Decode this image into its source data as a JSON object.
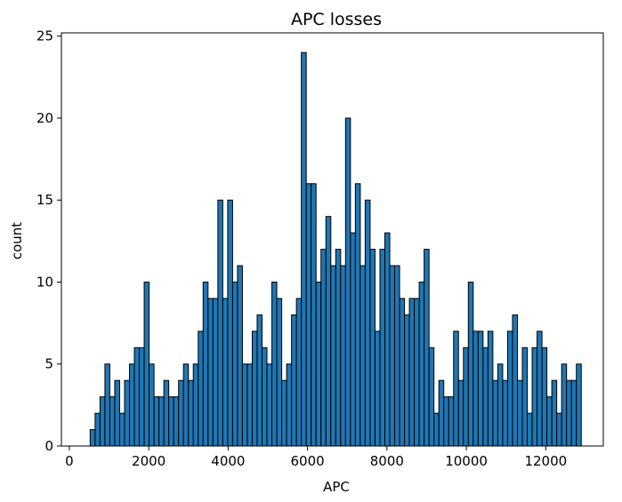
{
  "chart_data": {
    "type": "bar",
    "title": "APC losses",
    "xlabel": "APC",
    "ylabel": "count",
    "xlim": [
      -200,
      13450
    ],
    "ylim": [
      0,
      25.2
    ],
    "bin_start": 525,
    "bin_width": 123.7,
    "values": [
      1,
      2,
      3,
      5,
      3,
      4,
      2,
      4,
      5,
      6,
      6,
      10,
      5,
      3,
      3,
      4,
      3,
      3,
      4,
      5,
      4,
      5,
      7,
      10,
      9,
      9,
      15,
      9,
      15,
      10,
      11,
      5,
      5,
      7,
      8,
      6,
      5,
      10,
      9,
      4,
      5,
      8,
      9,
      24,
      16,
      16,
      10,
      12,
      14,
      11,
      12,
      11,
      20,
      13,
      16,
      11,
      15,
      12,
      7,
      12,
      13,
      11,
      11,
      9,
      8,
      9,
      9,
      10,
      12,
      6,
      2,
      4,
      3,
      3,
      7,
      4,
      6,
      10,
      7,
      7,
      6,
      7,
      4,
      5,
      4,
      7,
      8,
      4,
      6,
      2,
      6,
      7,
      6,
      3,
      4,
      2,
      5,
      4,
      4,
      5
    ],
    "xticks": [
      0,
      2000,
      4000,
      6000,
      8000,
      10000,
      12000
    ],
    "yticks": [
      0,
      5,
      10,
      15,
      20,
      25
    ],
    "bar_color": "#1f77b4",
    "edge_color": "#000000",
    "grid": false
  }
}
